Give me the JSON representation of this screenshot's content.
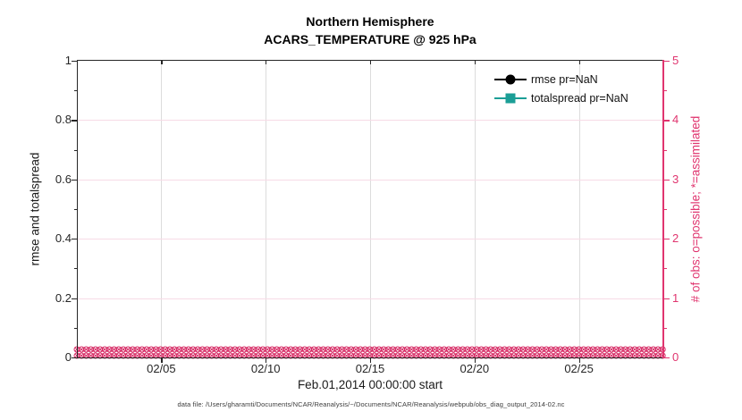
{
  "title": {
    "line1": "Northern Hemisphere",
    "line2": "ACARS_TEMPERATURE @ 925 hPa"
  },
  "legend": [
    {
      "label": "rmse pr=NaN",
      "marker": "filled-circle",
      "color": "#000000"
    },
    {
      "label": "totalspread pr=NaN",
      "marker": "filled-square",
      "color": "#1b9e96"
    }
  ],
  "axes": {
    "left": {
      "label": "rmse and totalspread",
      "ticks": [
        "0",
        "0.2",
        "0.4",
        "0.6",
        "0.8",
        "1"
      ]
    },
    "right": {
      "label": "# of obs: o=possible; *=assimilated",
      "ticks": [
        "0",
        "1",
        "2",
        "3",
        "4",
        "5"
      ]
    },
    "x": {
      "ticks": [
        "02/05",
        "02/10",
        "02/15",
        "02/20",
        "02/25"
      ],
      "label": "Feb.01,2014 00:00:00 start"
    }
  },
  "caption": "data file: /Users/gharamti/Documents/NCAR/Reanalysis/~/Documents/NCAR/Reanalysis/webpub/obs_diag_output_2014-02.nc",
  "colors": {
    "axis_dark": "#262626",
    "right_axis_pink": "#e0356f",
    "obs_marker_pink": "#d62a64",
    "grid_vertical": "#dcdcdc",
    "grid_horizontal_pink": "#f7dbe6",
    "rmse_black": "#000000",
    "totalspread_teal": "#1b9e96"
  },
  "chart_data": {
    "type": "line",
    "title": "Northern Hemisphere",
    "subtitle": "ACARS_TEMPERATURE @ 925 hPa",
    "xlabel": "Feb.01,2014 00:00:00 start",
    "x_tick_labels": [
      "02/05",
      "02/10",
      "02/15",
      "02/20",
      "02/25"
    ],
    "left_axis": {
      "label": "rmse and totalspread",
      "range": [
        0,
        1
      ]
    },
    "right_axis": {
      "label": "# of obs: o=possible; *=assimilated",
      "range": [
        0,
        5
      ]
    },
    "grid": true,
    "legend_position": "upper-right-inside",
    "series": [
      {
        "name": "rmse pr=NaN",
        "axis": "left",
        "marker": "filled-circle",
        "color": "#000000",
        "values": "NaN - no curve drawn"
      },
      {
        "name": "totalspread pr=NaN",
        "axis": "left",
        "marker": "filled-square",
        "color": "#1b9e96",
        "values": "NaN - no curve drawn"
      },
      {
        "name": "# of obs possible (o markers)",
        "axis": "right",
        "marker": "o",
        "color": "#d62a64",
        "constant_value": 0
      },
      {
        "name": "# of obs assimilated (x markers)",
        "axis": "right",
        "marker": "x",
        "color": "#d62a64",
        "constant_value": 0
      }
    ]
  }
}
